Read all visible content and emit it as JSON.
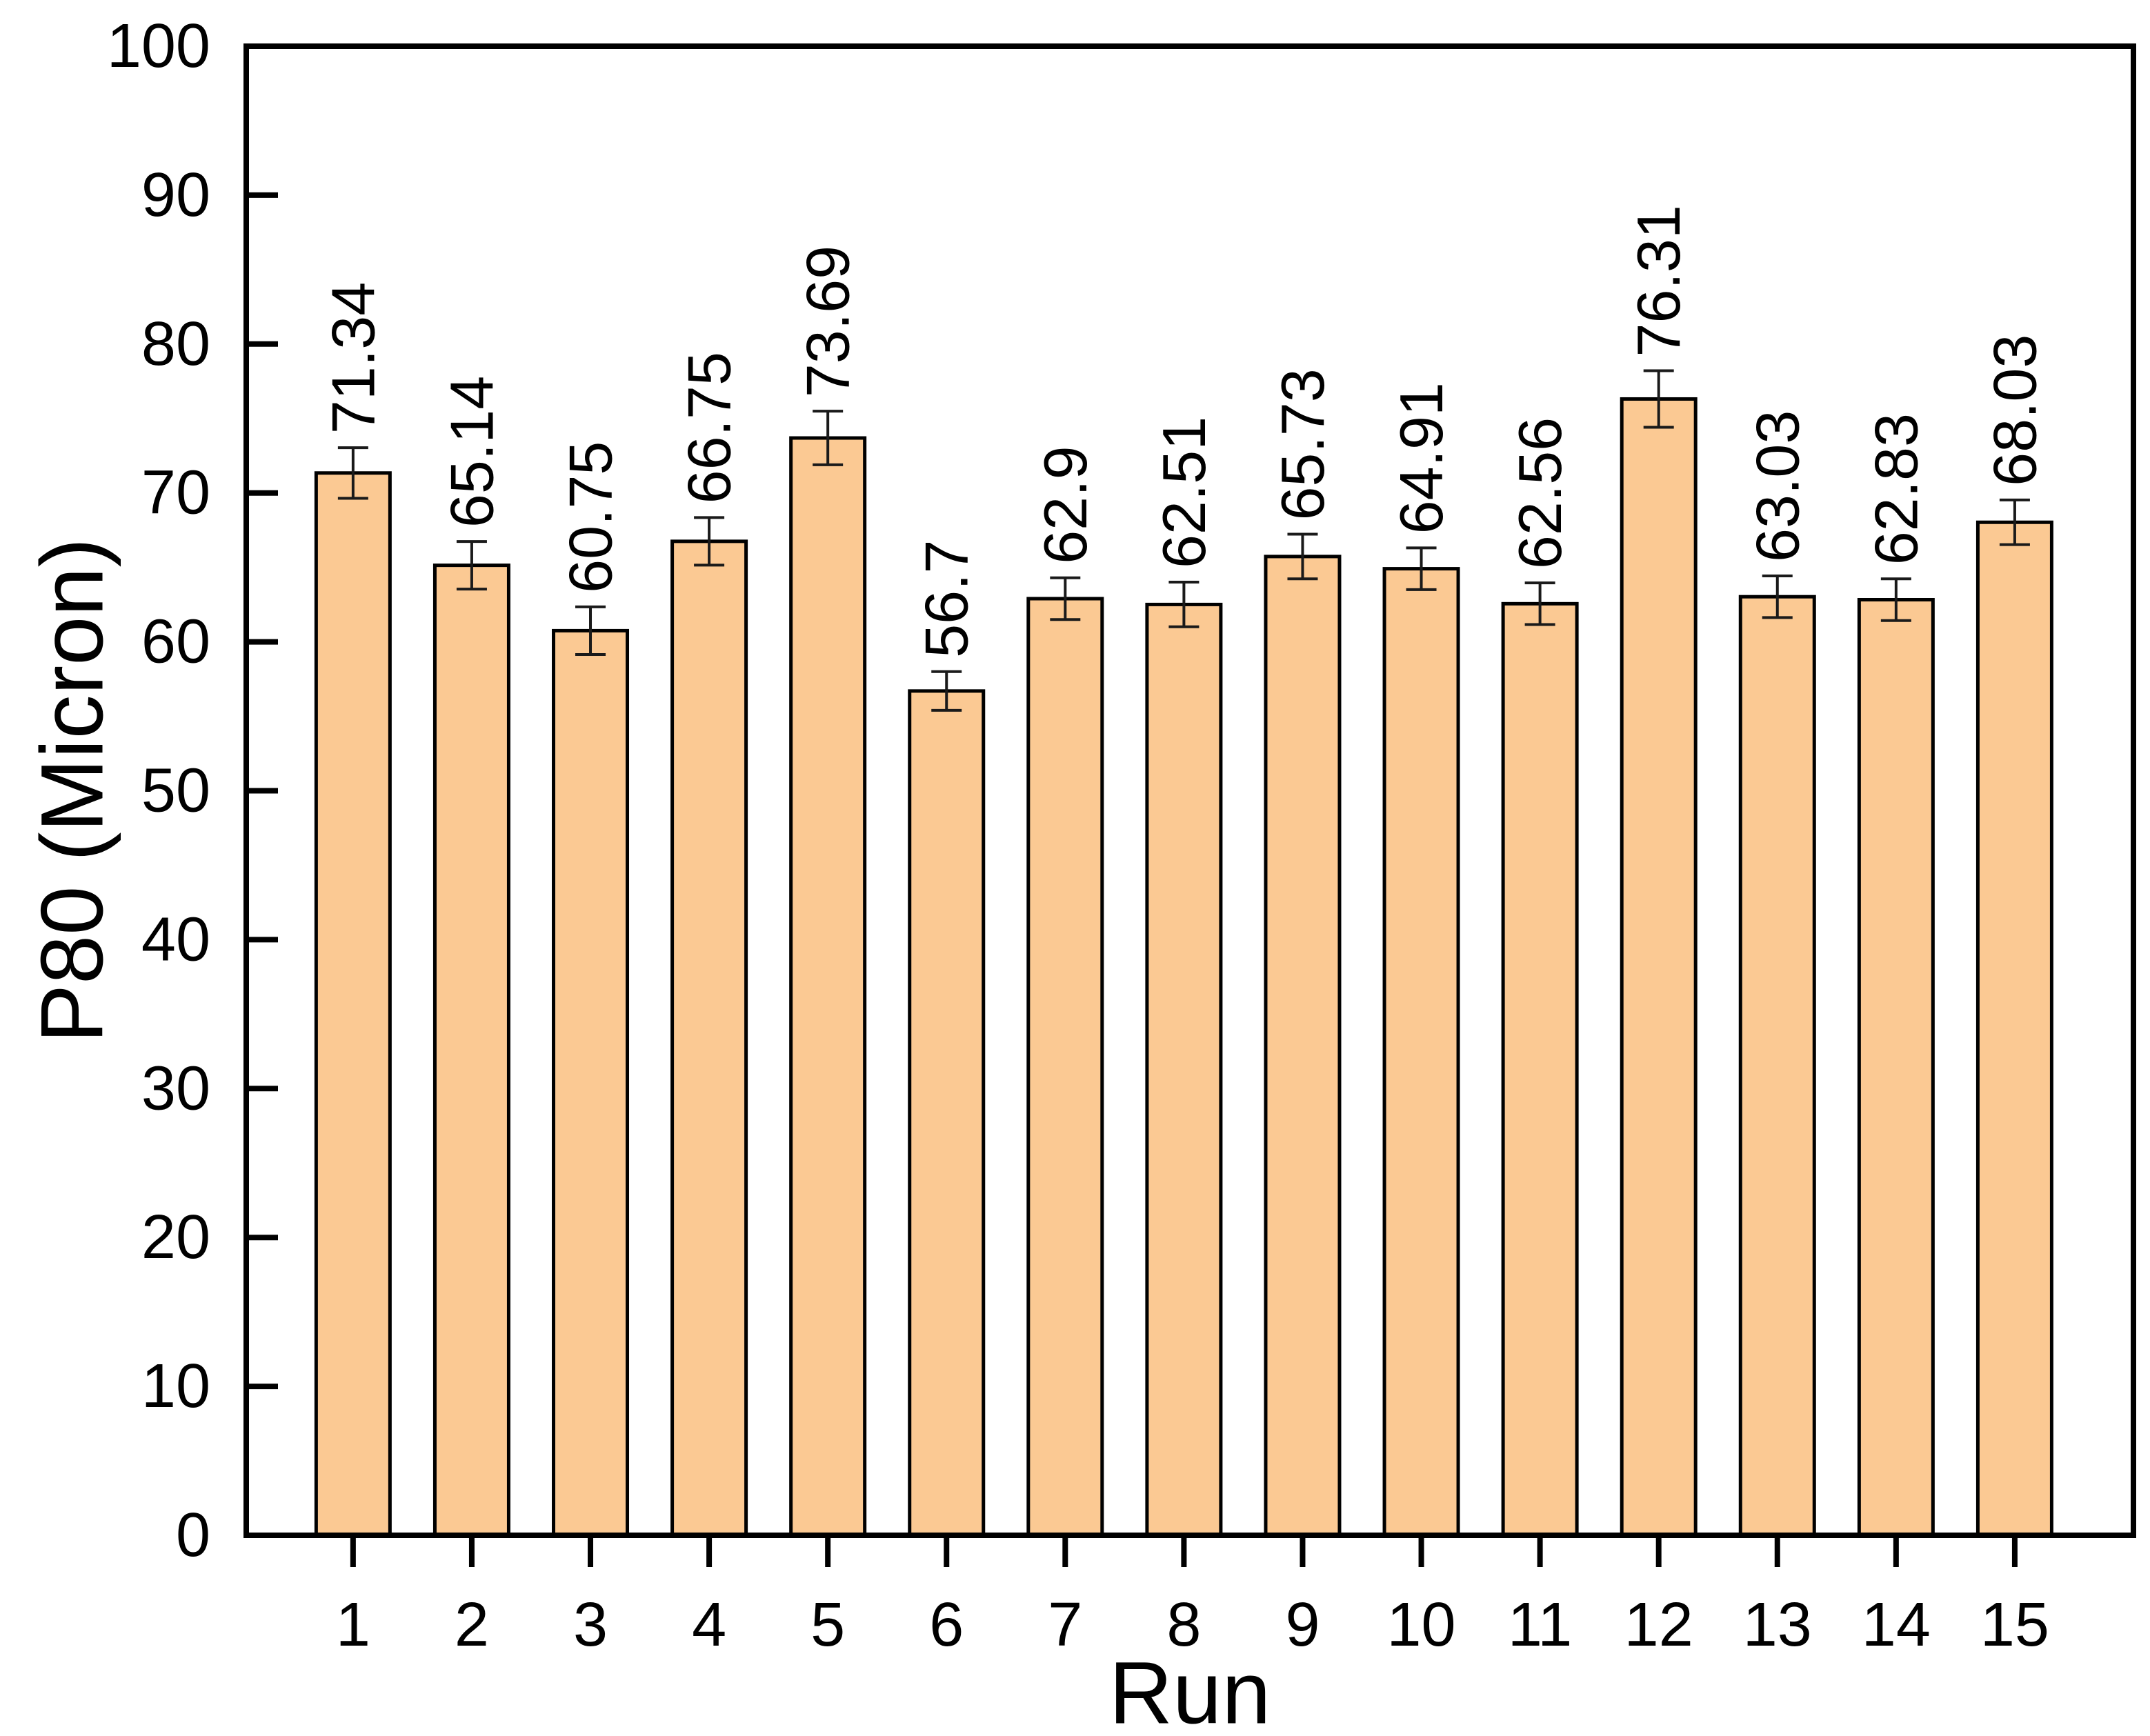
{
  "chart_data": {
    "type": "bar",
    "title": "",
    "xlabel": "Run",
    "ylabel": "P80 (Micron)",
    "categories": [
      "1",
      "2",
      "3",
      "4",
      "5",
      "6",
      "7",
      "8",
      "9",
      "10",
      "11",
      "12",
      "13",
      "14",
      "15"
    ],
    "values": [
      71.34,
      65.14,
      60.75,
      66.75,
      73.69,
      56.7,
      62.9,
      62.51,
      65.73,
      64.91,
      62.56,
      76.31,
      63.03,
      62.83,
      68.03
    ],
    "value_labels": [
      "71.34",
      "65.14",
      "60.75",
      "66.75",
      "73.69",
      "56.7",
      "62.9",
      "62.51",
      "65.73",
      "64.91",
      "62.56",
      "76.31",
      "63.03",
      "62.83",
      "68.03"
    ],
    "errors": [
      1.7,
      1.6,
      1.6,
      1.6,
      1.8,
      1.3,
      1.4,
      1.5,
      1.5,
      1.4,
      1.4,
      1.9,
      1.4,
      1.4,
      1.5
    ],
    "ylim": [
      0,
      100
    ],
    "yticks": [
      0,
      10,
      20,
      30,
      40,
      50,
      60,
      70,
      80,
      90,
      100
    ],
    "xlim": [
      0.1,
      16.0
    ],
    "grid": false,
    "legend": null,
    "bar_color": "#FBC993",
    "bar_border_color": "#000000",
    "error_bar_color": "#1a1a1a"
  }
}
